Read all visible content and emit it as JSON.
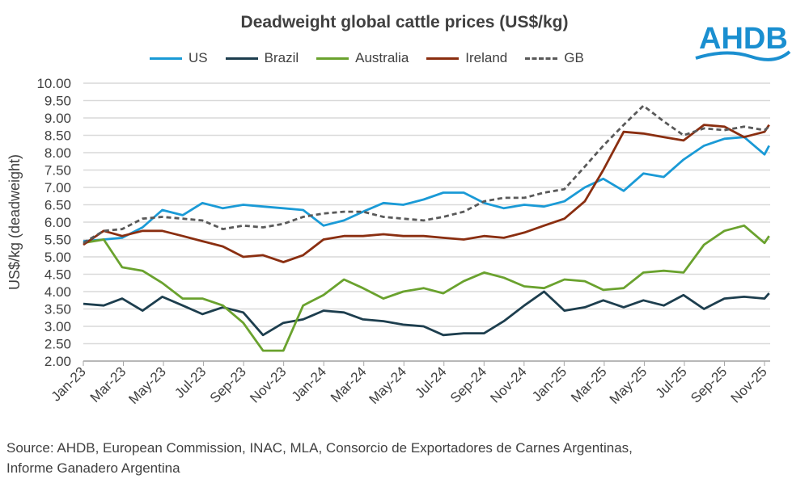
{
  "logo_text": "AHDB",
  "chart_data": {
    "type": "line",
    "title": "Deadweight global cattle prices (US$/kg)",
    "ylabel": "US$/kg (deadweight)",
    "xlabel": "",
    "ylim": [
      2,
      10
    ],
    "yticks": [
      "2.00",
      "2.50",
      "3.00",
      "3.50",
      "4.00",
      "4.50",
      "5.00",
      "5.50",
      "6.00",
      "6.50",
      "7.00",
      "7.50",
      "8.00",
      "8.50",
      "9.00",
      "9.50",
      "10.00"
    ],
    "xticks": [
      "Jan-23",
      "Mar-23",
      "May-23",
      "Jul-23",
      "Sep-23",
      "Nov-23",
      "Jan-24",
      "Mar-24",
      "May-24",
      "Jul-24",
      "Sep-24",
      "Nov-24",
      "Jan-25",
      "Mar-25",
      "May-25",
      "Jul-25",
      "Sep-25",
      "Nov-25"
    ],
    "grid": true,
    "legend": "top",
    "x": [
      "2023-01",
      "2023-02",
      "2023-03",
      "2023-04",
      "2023-05",
      "2023-06",
      "2023-07",
      "2023-08",
      "2023-09",
      "2023-10",
      "2023-11",
      "2023-12",
      "2024-01",
      "2024-02",
      "2024-03",
      "2024-04",
      "2024-05",
      "2024-06",
      "2024-07",
      "2024-08",
      "2024-09",
      "2024-10",
      "2024-11",
      "2024-12",
      "2025-01",
      "2025-02",
      "2025-03",
      "2025-04",
      "2025-05",
      "2025-06",
      "2025-07",
      "2025-08",
      "2025-09",
      "2025-10",
      "2025-11",
      "2025-11-08"
    ],
    "series": [
      {
        "name": "US",
        "color": "#1a9ad6",
        "dashed": false,
        "values": [
          5.45,
          5.5,
          5.55,
          5.85,
          6.35,
          6.2,
          6.55,
          6.4,
          6.5,
          6.45,
          6.4,
          6.35,
          5.9,
          6.05,
          6.3,
          6.55,
          6.5,
          6.65,
          6.85,
          6.85,
          6.55,
          6.4,
          6.5,
          6.45,
          6.6,
          7.0,
          7.25,
          6.9,
          7.4,
          7.3,
          7.8,
          8.2,
          8.4,
          8.45,
          7.95,
          8.2
        ]
      },
      {
        "name": "Brazil",
        "color": "#1d3e4e",
        "dashed": false,
        "values": [
          3.65,
          3.6,
          3.8,
          3.45,
          3.85,
          3.6,
          3.35,
          3.55,
          3.4,
          2.75,
          3.1,
          3.2,
          3.45,
          3.4,
          3.2,
          3.15,
          3.05,
          3.0,
          2.75,
          2.8,
          2.8,
          3.15,
          3.6,
          4.0,
          3.45,
          3.55,
          3.75,
          3.55,
          3.75,
          3.6,
          3.9,
          3.5,
          3.8,
          3.85,
          3.8,
          3.95
        ]
      },
      {
        "name": "Australia",
        "color": "#6aa22e",
        "dashed": false,
        "values": [
          5.4,
          5.5,
          4.7,
          4.6,
          4.25,
          3.8,
          3.8,
          3.6,
          3.1,
          2.3,
          2.3,
          3.6,
          3.9,
          4.35,
          4.1,
          3.8,
          4.0,
          4.1,
          3.95,
          4.3,
          4.55,
          4.4,
          4.15,
          4.1,
          4.35,
          4.3,
          4.05,
          4.1,
          4.55,
          4.6,
          4.55,
          5.35,
          5.75,
          5.9,
          5.4,
          5.6
        ]
      },
      {
        "name": "Ireland",
        "color": "#8a2e10",
        "dashed": false,
        "values": [
          5.35,
          5.75,
          5.6,
          5.75,
          5.75,
          5.6,
          5.45,
          5.3,
          5.0,
          5.05,
          4.85,
          5.05,
          5.5,
          5.6,
          5.6,
          5.65,
          5.6,
          5.6,
          5.55,
          5.5,
          5.6,
          5.55,
          5.7,
          5.9,
          6.1,
          6.6,
          7.5,
          8.6,
          8.55,
          8.45,
          8.35,
          8.8,
          8.75,
          8.45,
          8.6,
          8.8
        ]
      },
      {
        "name": "GB",
        "color": "#595959",
        "dashed": true,
        "values": [
          5.4,
          5.75,
          5.8,
          6.1,
          6.15,
          6.1,
          6.05,
          5.8,
          5.9,
          5.85,
          5.95,
          6.15,
          6.25,
          6.3,
          6.3,
          6.15,
          6.1,
          6.05,
          6.15,
          6.3,
          6.6,
          6.7,
          6.7,
          6.85,
          6.95,
          7.6,
          8.2,
          8.8,
          9.35,
          8.9,
          8.5,
          8.7,
          8.65,
          8.75,
          8.65,
          8.75
        ]
      }
    ]
  },
  "source": "Source: AHDB, European Commission, INAC, MLA, Consorcio de Exportadores de Carnes Argentinas, Informe Ganadero Argentina"
}
